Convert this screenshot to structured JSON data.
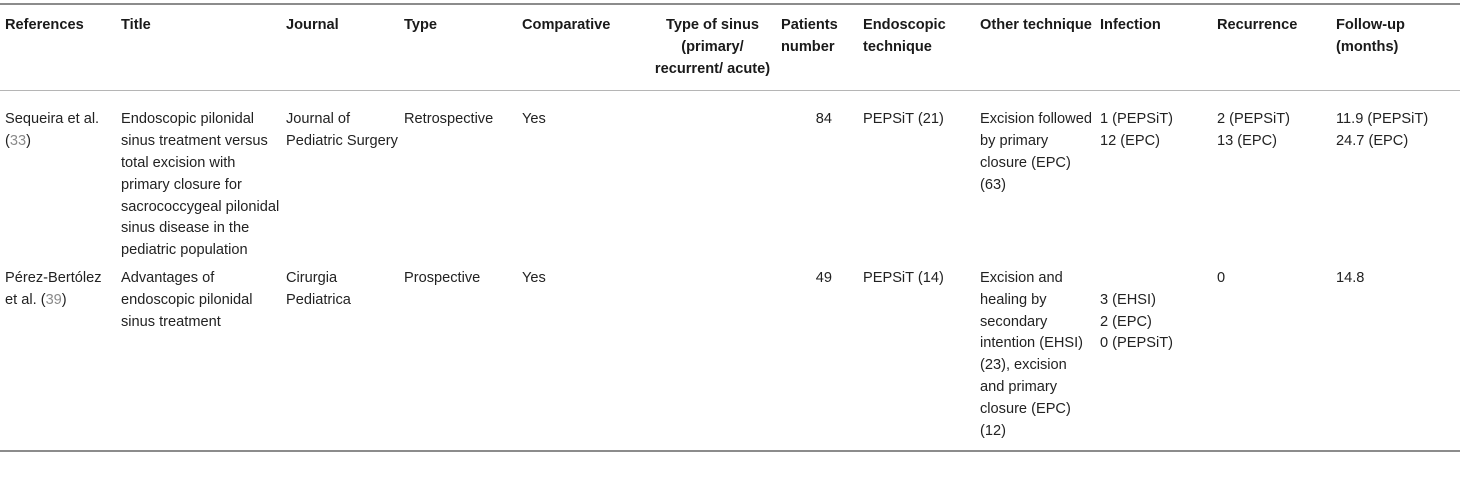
{
  "columns": [
    "References",
    "Title",
    "Journal",
    "Type",
    "Comparative",
    "Type of sinus (primary/ recurrent/ acute)",
    "Patients number",
    "Endoscopic technique",
    "Other technique",
    "Infection",
    "Recurrence",
    "Follow-up (months)"
  ],
  "rows": [
    {
      "ref_text": "Sequeira et al. (",
      "ref_num": "33",
      "ref_close": ")",
      "title": "Endoscopic pilonidal sinus treatment versus total excision with primary closure for sacrococcygeal pilonidal sinus disease in the pediatric population",
      "journal": "Journal of Pediatric Surgery",
      "type": "Retrospective",
      "comparative": "Yes",
      "sinus_type": "",
      "patients": "84",
      "endoscopic": "PEPSiT (21)",
      "other": "Excision followed by primary closure (EPC) (63)",
      "infection": [
        "1 (PEPSiT)",
        "12 (EPC)"
      ],
      "recurrence": [
        "2 (PEPSiT)",
        "13 (EPC)"
      ],
      "followup": [
        "11.9 (PEPSiT)",
        "24.7 (EPC)"
      ]
    },
    {
      "ref_text": "Pérez-Bertólez et al. (",
      "ref_num": "39",
      "ref_close": ")",
      "title": "Advantages of endoscopic pilonidal sinus treatment",
      "journal": "Cirurgia Pediatrica",
      "type": "Prospective",
      "comparative": "Yes",
      "sinus_type": "",
      "patients": "49",
      "endoscopic": "PEPSiT (14)",
      "other": "Excision and healing by secondary intention (EHSI) (23), excision and primary closure (EPC) (12)",
      "infection": [
        "3 (EHSI)",
        "2 (EPC)",
        "0 (PEPSiT)"
      ],
      "recurrence": [
        "0"
      ],
      "followup": [
        "14.8"
      ]
    }
  ]
}
